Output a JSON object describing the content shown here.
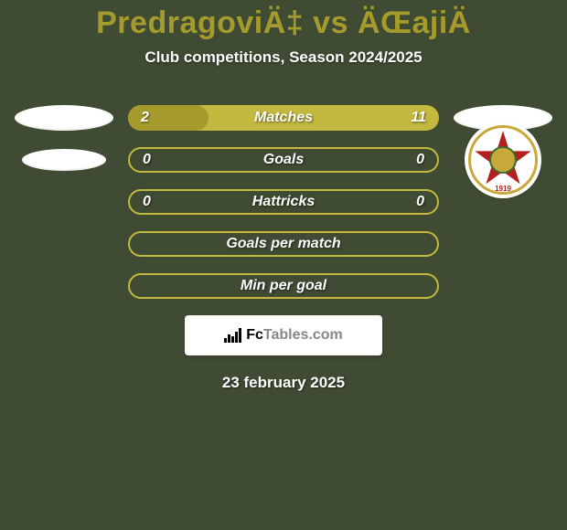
{
  "background_color": "#3f4b32",
  "accent_color": "#a59b2d",
  "border_color": "#c3b93f",
  "text_white": "#ffffff",
  "title": {
    "left": "PredragoviÄ‡",
    "vs": "vs",
    "right": "ÄŒajiÄ",
    "color": "#a59b2d",
    "fontsize": 34
  },
  "subtitle": "Club competitions, Season 2024/2025",
  "rows": [
    {
      "label": "Matches",
      "left": "2",
      "right": "11",
      "fill_pct": 26,
      "bordered": false
    },
    {
      "label": "Goals",
      "left": "0",
      "right": "0",
      "fill_pct": 0,
      "bordered": true
    },
    {
      "label": "Hattricks",
      "left": "0",
      "right": "0",
      "fill_pct": 0,
      "bordered": true
    },
    {
      "label": "Goals per match",
      "left": "",
      "right": "",
      "fill_pct": 0,
      "bordered": true
    },
    {
      "label": "Min per goal",
      "left": "",
      "right": "",
      "fill_pct": 0,
      "bordered": true
    }
  ],
  "left_markers": [
    true,
    true,
    false,
    false,
    false
  ],
  "brand": {
    "prefix": "Fc",
    "suffix": "Tables.com",
    "bg": "#ffffff"
  },
  "date": "23 february 2025",
  "crest": {
    "bg": "#ffffff",
    "ring": "#c7a93a",
    "star": "#b32020",
    "inner": "#c7a93a",
    "inner_border": "#3a6b2f",
    "year": "1919",
    "year_color": "#b32020"
  }
}
